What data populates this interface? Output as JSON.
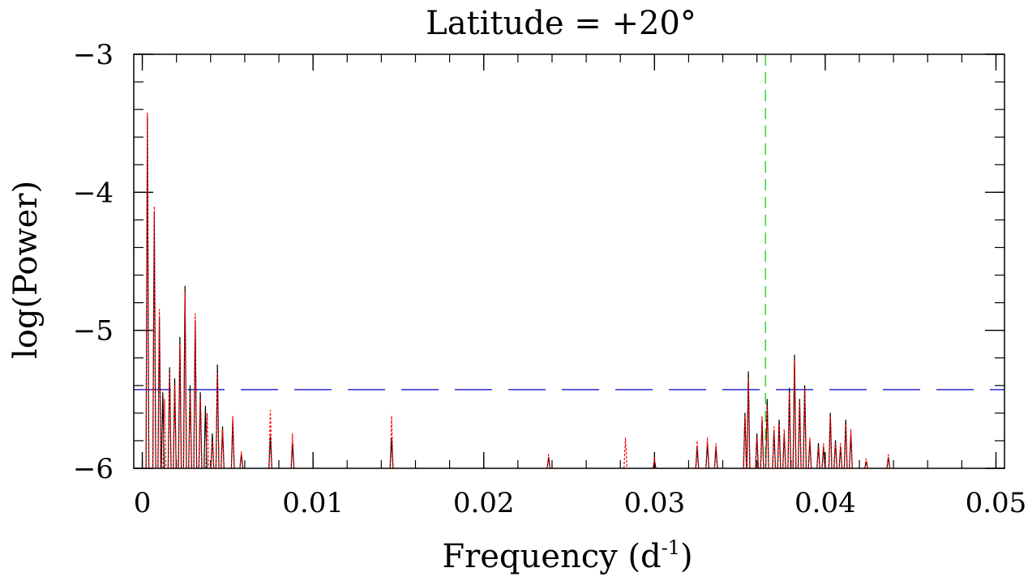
{
  "chart_data": {
    "type": "line",
    "title": "Latitude = +20°",
    "xlabel": "Frequency (d",
    "xlabel_sup": "-1",
    "xlabel_close": ")",
    "ylabel": "log(Power)",
    "xlim": [
      -0.0005,
      0.0505
    ],
    "ylim": [
      -6,
      -3
    ],
    "x_ticks": [
      0,
      0.01,
      0.02,
      0.03,
      0.04,
      0.05
    ],
    "x_tick_labels": [
      "0",
      "0.01",
      "0.02",
      "0.03",
      "0.04",
      "0.05"
    ],
    "y_ticks": [
      -6,
      -5,
      -4,
      -3
    ],
    "y_tick_labels": [
      "−6",
      "−5",
      "−4",
      "−3"
    ],
    "x_minor_step": 0.002,
    "y_minor_step": 0.2,
    "threshold": {
      "y": -5.43,
      "color": "#0000cc",
      "style": "dashed"
    },
    "marker": {
      "x": 0.0365,
      "color": "#00cc00",
      "style": "dashed"
    },
    "series": [
      {
        "color": "#000000",
        "style": "solid",
        "peaks": [
          [
            0.0003,
            -3.45
          ],
          [
            0.0007,
            -4.15
          ],
          [
            0.001,
            -4.9
          ],
          [
            0.0012,
            -5.45
          ],
          [
            0.0016,
            -5.27
          ],
          [
            0.0019,
            -5.35
          ],
          [
            0.0022,
            -5.05
          ],
          [
            0.0025,
            -4.68
          ],
          [
            0.0028,
            -5.4
          ],
          [
            0.0031,
            -4.93
          ],
          [
            0.0034,
            -5.45
          ],
          [
            0.0037,
            -5.55
          ],
          [
            0.0041,
            -5.75
          ],
          [
            0.0044,
            -5.25
          ],
          [
            0.0047,
            -5.7
          ],
          [
            0.0053,
            -5.65
          ],
          [
            0.0058,
            -5.9
          ],
          [
            0.0075,
            -5.77
          ],
          [
            0.0088,
            -5.82
          ],
          [
            0.0146,
            -5.78
          ],
          [
            0.0238,
            -5.92
          ],
          [
            0.03,
            -5.95
          ],
          [
            0.0325,
            -5.85
          ],
          [
            0.0331,
            -5.82
          ],
          [
            0.0336,
            -5.85
          ],
          [
            0.0353,
            -5.6
          ],
          [
            0.0355,
            -5.3
          ],
          [
            0.036,
            -5.75
          ],
          [
            0.0363,
            -5.65
          ],
          [
            0.0366,
            -5.5
          ],
          [
            0.037,
            -5.73
          ],
          [
            0.0373,
            -5.65
          ],
          [
            0.0376,
            -5.75
          ],
          [
            0.0379,
            -5.42
          ],
          [
            0.0382,
            -5.18
          ],
          [
            0.0385,
            -5.5
          ],
          [
            0.0388,
            -5.4
          ],
          [
            0.0391,
            -5.8
          ],
          [
            0.0396,
            -5.82
          ],
          [
            0.0399,
            -5.85
          ],
          [
            0.0403,
            -5.6
          ],
          [
            0.0406,
            -5.8
          ],
          [
            0.0409,
            -5.85
          ],
          [
            0.0412,
            -5.65
          ],
          [
            0.0415,
            -5.75
          ],
          [
            0.0424,
            -5.95
          ],
          [
            0.0437,
            -5.92
          ]
        ]
      },
      {
        "color": "#ff0000",
        "style": "dotted",
        "peaks": [
          [
            0.0003,
            -3.42
          ],
          [
            0.0007,
            -4.1
          ],
          [
            0.001,
            -4.85
          ],
          [
            0.0013,
            -5.5
          ],
          [
            0.0016,
            -5.3
          ],
          [
            0.0019,
            -5.4
          ],
          [
            0.0022,
            -5.1
          ],
          [
            0.0025,
            -4.72
          ],
          [
            0.0028,
            -5.45
          ],
          [
            0.0031,
            -4.88
          ],
          [
            0.0034,
            -5.5
          ],
          [
            0.0038,
            -5.6
          ],
          [
            0.0041,
            -5.8
          ],
          [
            0.0044,
            -5.3
          ],
          [
            0.0047,
            -5.72
          ],
          [
            0.0053,
            -5.62
          ],
          [
            0.0058,
            -5.88
          ],
          [
            0.0075,
            -5.58
          ],
          [
            0.0088,
            -5.75
          ],
          [
            0.0146,
            -5.62
          ],
          [
            0.0238,
            -5.9
          ],
          [
            0.0283,
            -5.78
          ],
          [
            0.03,
            -5.92
          ],
          [
            0.0325,
            -5.8
          ],
          [
            0.0331,
            -5.78
          ],
          [
            0.0336,
            -5.82
          ],
          [
            0.0353,
            -5.62
          ],
          [
            0.0355,
            -5.35
          ],
          [
            0.036,
            -5.78
          ],
          [
            0.0363,
            -5.62
          ],
          [
            0.0366,
            -5.55
          ],
          [
            0.037,
            -5.7
          ],
          [
            0.0373,
            -5.68
          ],
          [
            0.0376,
            -5.72
          ],
          [
            0.0379,
            -5.45
          ],
          [
            0.0382,
            -5.22
          ],
          [
            0.0385,
            -5.52
          ],
          [
            0.0388,
            -5.42
          ],
          [
            0.0391,
            -5.78
          ],
          [
            0.0396,
            -5.85
          ],
          [
            0.0399,
            -5.82
          ],
          [
            0.0403,
            -5.62
          ],
          [
            0.0406,
            -5.82
          ],
          [
            0.0409,
            -5.82
          ],
          [
            0.0412,
            -5.68
          ],
          [
            0.0415,
            -5.72
          ],
          [
            0.0424,
            -5.93
          ],
          [
            0.0437,
            -5.9
          ]
        ]
      }
    ]
  }
}
